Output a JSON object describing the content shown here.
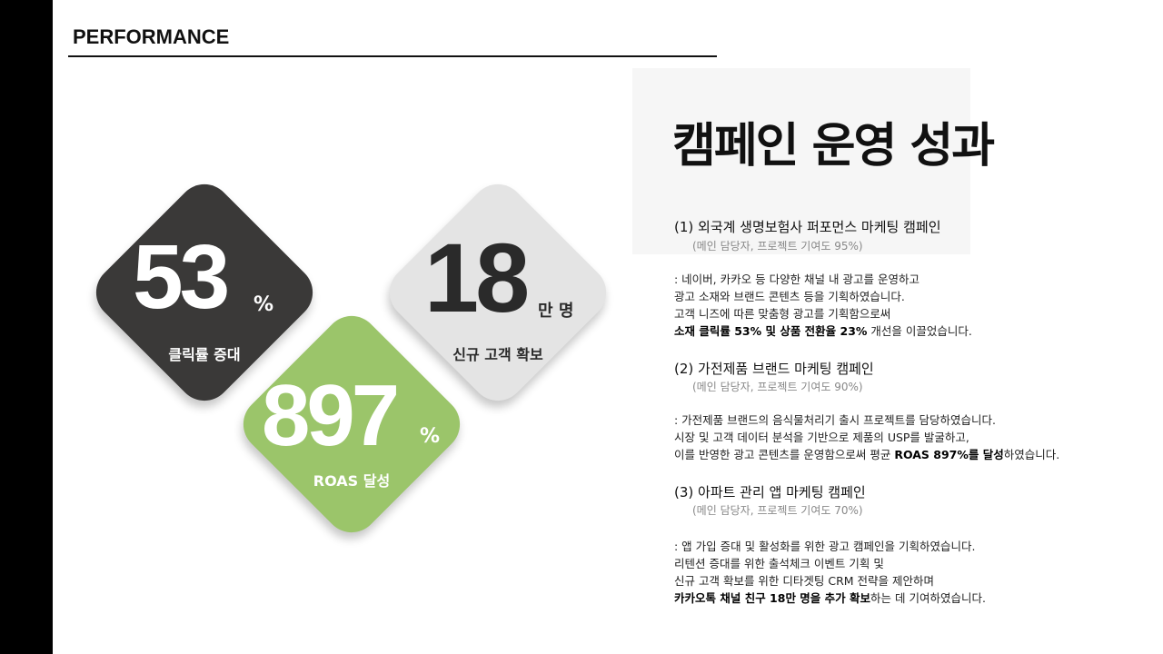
{
  "header": {
    "section_title": "PERFORMANCE"
  },
  "stats": [
    {
      "value": "53",
      "unit": "%",
      "label": "클릭률 증대",
      "color": "#3a3938"
    },
    {
      "value": "18",
      "unit": "만 명",
      "label": "신규 고객 확보",
      "color": "#e4e4e4"
    },
    {
      "value": "897",
      "unit": "%",
      "label": "ROAS 달성",
      "color": "#9bc56a"
    }
  ],
  "main": {
    "heading": "캠페인 운영 성과",
    "campaigns": [
      {
        "title": "(1) 외국계 생명보험사 퍼포먼스 마케팅 캠페인",
        "sub": "(메인 담당자, 프로젝트 기여도 95%)",
        "line1": ": 네이버, 카카오 등 다양한 채널 내 광고를 운영하고",
        "line2": "광고 소재와 브랜드 콘텐츠 등을 기획하였습니다.",
        "line3": "고객 니즈에 따른 맞춤형 광고를 기획함으로써",
        "line4_bold": "소재 클릭률 53% 및 상품 전환율 23%",
        "line4_rest": " 개선을 이끌었습니다."
      },
      {
        "title": "(2) 가전제품 브랜드 마케팅 캠페인",
        "sub": "(메인 담당자, 프로젝트 기여도 90%)",
        "line1": ": 가전제품 브랜드의 음식물처리기 출시 프로젝트를 담당하였습니다.",
        "line2": "시장 및 고객 데이터 분석을 기반으로 제품의 USP를 발굴하고,",
        "line3_pre": "이를 반영한 광고 콘텐츠를 운영함으로써 평균 ",
        "line3_bold": "ROAS 897%를 달성",
        "line3_rest": "하였습니다."
      },
      {
        "title": "(3) 아파트 관리 앱 마케팅 캠페인",
        "sub": "(메인 담당자, 프로젝트 기여도 70%)",
        "line1": ": 앱 가입 증대 및 활성화를 위한 광고 캠페인을 기획하였습니다.",
        "line2": "리텐션 증대를 위한 출석체크 이벤트 기획 및",
        "line3": "신규 고객 확보를 위한 디타겟팅 CRM 전략을 제안하며",
        "line4_bold": "카카오톡 채널 친구 18만 명을 추가 확보",
        "line4_rest": "하는 데 기여하였습니다."
      }
    ]
  }
}
